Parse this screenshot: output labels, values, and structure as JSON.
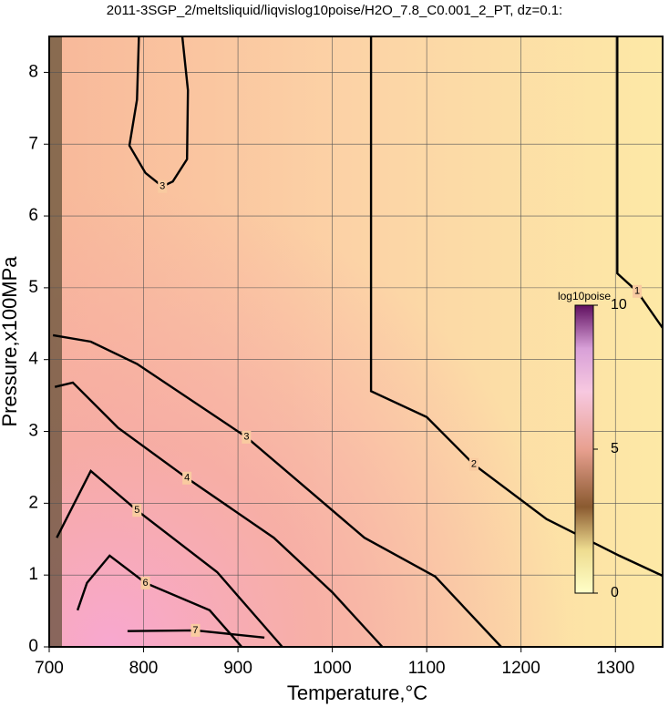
{
  "chart_data": {
    "type": "contour",
    "title": "2011-3SGP_2/meltsliquid/liqvislog10poise/H2O_7.8_C0.001_2_PT, dz=0.1:",
    "x_label": "Temperature,°C",
    "y_label": "Pressure,x100MPa",
    "xlim": [
      700,
      1350
    ],
    "ylim": [
      0,
      8.5
    ],
    "xticks": [
      700,
      800,
      900,
      1000,
      1100,
      1200,
      1300
    ],
    "yticks": [
      0,
      1,
      2,
      3,
      4,
      5,
      6,
      7,
      8
    ],
    "grid": true,
    "contours": [
      {
        "level": 1,
        "x": [
          1302,
          1302,
          1323,
          1350
        ],
        "y": [
          8.5,
          5.2,
          4.95,
          4.44
        ]
      },
      {
        "level": 2,
        "x": [
          1041,
          1041,
          1100,
          1150,
          1227,
          1304,
          1350
        ],
        "y": [
          8.5,
          3.56,
          3.2,
          2.54,
          1.78,
          1.27,
          0.99
        ]
      },
      {
        "level": 3,
        "x": [
          795,
          793,
          785,
          802,
          820,
          831,
          846,
          847,
          841
        ],
        "y": [
          8.5,
          7.62,
          6.98,
          6.6,
          6.41,
          6.48,
          6.79,
          7.75,
          8.5
        ]
      },
      {
        "level": 3,
        "x": [
          704,
          744,
          793,
          909,
          1034,
          1109,
          1179
        ],
        "y": [
          4.34,
          4.25,
          3.94,
          2.92,
          1.52,
          0.98,
          0
        ]
      },
      {
        "level": 4,
        "x": [
          706,
          725,
          773,
          846,
          938,
          1000,
          1053
        ],
        "y": [
          3.62,
          3.68,
          3.05,
          2.35,
          1.52,
          0.76,
          0
        ]
      },
      {
        "level": 5,
        "x": [
          708,
          744,
          793,
          878,
          947
        ],
        "y": [
          1.52,
          2.45,
          1.9,
          1.04,
          0
        ]
      },
      {
        "level": 6,
        "x": [
          730,
          740,
          764,
          802,
          870,
          904
        ],
        "y": [
          0.51,
          0.89,
          1.27,
          0.89,
          0.51,
          0
        ]
      },
      {
        "level": 7,
        "x": [
          783,
          855,
          928
        ],
        "y": [
          0.22,
          0.23,
          0.13
        ]
      }
    ],
    "colorbar": {
      "label": "log10poise",
      "lim": [
        0,
        10
      ],
      "ticks": [
        0,
        5,
        10
      ]
    }
  }
}
